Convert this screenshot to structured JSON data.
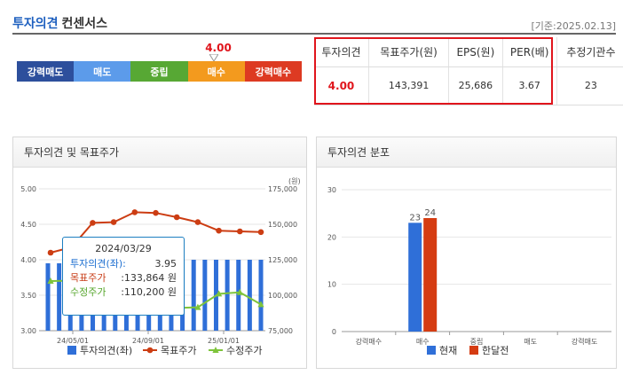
{
  "header": {
    "title_accent": "투자의견",
    "title_rest": "컨센서스",
    "base_date": "[기준:2025.02.13]"
  },
  "scale": {
    "segments": [
      {
        "label": "강력매도",
        "color": "#2d4f9c"
      },
      {
        "label": "매도",
        "color": "#5c9bea"
      },
      {
        "label": "중립",
        "color": "#57a834"
      },
      {
        "label": "매수",
        "color": "#f39a1e"
      },
      {
        "label": "강력매수",
        "color": "#dd3a22"
      }
    ],
    "marker_value": "4.00"
  },
  "summary": {
    "headers": [
      "투자의견",
      "목표주가(원)",
      "EPS(원)",
      "PER(배)",
      "추정기관수"
    ],
    "values": [
      "4.00",
      "143,391",
      "25,686",
      "3.67",
      "23"
    ]
  },
  "left_panel": {
    "title": "투자의견 및 목표주가"
  },
  "right_panel": {
    "title": "투자의견 분포"
  },
  "chart_data": [
    {
      "type": "bar+line",
      "title": "투자의견 및 목표주가",
      "y_left": {
        "ticks": [
          "5.00",
          "4.50",
          "4.00",
          "3.50",
          "3.00"
        ],
        "ylim": [
          3.0,
          5.0
        ]
      },
      "y_right": {
        "label": "(원)",
        "ticks": [
          "175,000",
          "150,000",
          "125,000",
          "100,000",
          "75,000"
        ],
        "ylim": [
          75000,
          175000
        ]
      },
      "x_ticks": [
        "24/05/01",
        "24/09/01",
        "25/01/01"
      ],
      "legend": [
        "투자의견(좌)",
        "목표주가",
        "수정주가"
      ],
      "series": [
        {
          "name": "투자의견(좌)",
          "kind": "bar",
          "color": "#2f6fd8",
          "values": [
            3.95,
            3.95,
            4.0,
            4.0,
            4.0,
            4.0,
            4.0,
            4.0,
            4.0,
            4.0,
            4.0,
            4.0,
            4.0,
            4.0,
            4.0,
            4.0,
            4.0,
            4.0,
            4.0,
            4.0
          ]
        },
        {
          "name": "목표주가",
          "kind": "line",
          "color": "#cc3d13",
          "values": [
            130000,
            133864,
            151000,
            151500,
            158500,
            158000,
            155000,
            151500,
            145500,
            145000,
            144500
          ]
        },
        {
          "name": "수정주가",
          "kind": "line",
          "color": "#7ec43b",
          "values": [
            110000,
            110200,
            113000,
            108000,
            105000,
            98000,
            91000,
            91500,
            101000,
            102000,
            93500
          ]
        }
      ],
      "tooltip": {
        "date": "2024/03/29",
        "rows": [
          {
            "label": "투자의견(좌):",
            "value": "3.95"
          },
          {
            "label": "목표주가",
            "value": ":133,864 원"
          },
          {
            "label": "수정주가",
            "value": ":110,200 원"
          }
        ]
      }
    },
    {
      "type": "bar",
      "title": "투자의견 분포",
      "categories": [
        "강력매수",
        "매수",
        "중립",
        "매도",
        "강력매도"
      ],
      "ylim": [
        0,
        30
      ],
      "y_ticks": [
        "30",
        "20",
        "10",
        "0"
      ],
      "legend": [
        "현재",
        "한달전"
      ],
      "series": [
        {
          "name": "현재",
          "color": "#2f6fd8",
          "values": [
            0,
            23,
            0,
            0,
            0
          ]
        },
        {
          "name": "한달전",
          "color": "#d53c12",
          "values": [
            0,
            24,
            0,
            0,
            0
          ]
        }
      ]
    }
  ]
}
